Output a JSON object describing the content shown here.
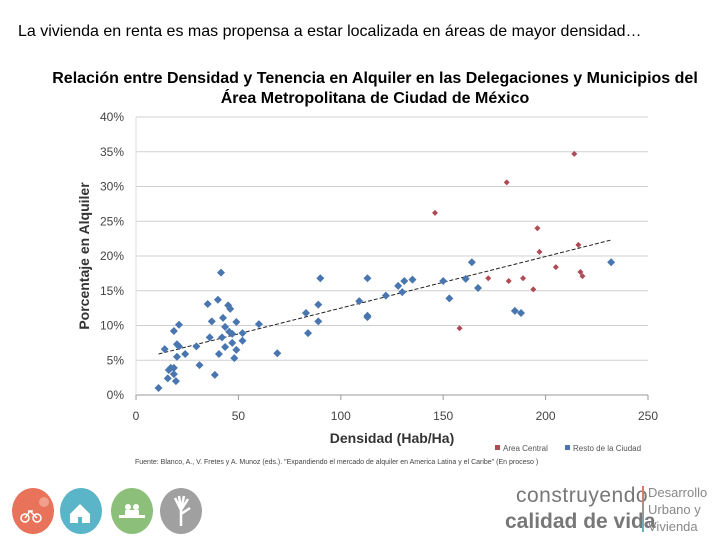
{
  "slide": {
    "heading": "La vivienda en renta es mas propensa a estar localizada en áreas de mayor densidad…",
    "source": "Fuente: Blanco, A., V. Fretes y A. Munoz (eds.). \"Expandiendo el mercado de alquiler en America Latina y el Caribe\" (En proceso )",
    "brand": {
      "line1": "construyendo",
      "line2": "calidad de vida",
      "dept": "Desarrollo Urbano y Vivienda"
    },
    "logos": [
      {
        "icon": "bicycle-icon",
        "color": "#e8735a"
      },
      {
        "icon": "house-icon",
        "color": "#5ab5c8"
      },
      {
        "icon": "community-icon",
        "color": "#8cc07a"
      },
      {
        "icon": "raised-hands-icon",
        "color": "#a0a0a0"
      }
    ]
  },
  "chart_data": {
    "type": "scatter",
    "title": "Relación entre Densidad y Tenencia en Alquiler en las Delegaciones y Municipios del Área Metropolitana de Ciudad de México",
    "xlabel": "Densidad (Hab/Ha)",
    "ylabel": "Porcentaje en Alquiler",
    "xlim": [
      0,
      250
    ],
    "ylim": [
      0,
      40
    ],
    "xticks": [
      "0",
      "50",
      "100",
      "150",
      "200",
      "250"
    ],
    "yticks": [
      "0%",
      "5%",
      "10%",
      "15%",
      "20%",
      "25%",
      "30%",
      "35%",
      "40%"
    ],
    "grid": "horizontal",
    "legend_position": "bottom-right",
    "trendline": {
      "style": "dashed",
      "x": [
        11,
        232
      ],
      "y": [
        5.9,
        22.3
      ]
    },
    "series": [
      {
        "name": "Area Central",
        "color": "#b04a55",
        "points": [
          [
            214,
            34.7
          ],
          [
            181,
            30.6
          ],
          [
            146,
            26.2
          ],
          [
            196,
            24.0
          ],
          [
            216,
            21.6
          ],
          [
            197,
            20.6
          ],
          [
            205,
            18.4
          ],
          [
            217,
            17.7
          ],
          [
            218,
            17.1
          ],
          [
            172,
            16.8
          ],
          [
            182,
            16.4
          ],
          [
            189,
            16.8
          ],
          [
            194,
            15.2
          ],
          [
            158,
            9.6
          ]
        ]
      },
      {
        "name": "Resto de la Ciudad",
        "color": "#4a76b0",
        "points": [
          [
            232,
            19.1
          ],
          [
            164,
            19.1
          ],
          [
            90,
            16.8
          ],
          [
            113,
            16.8
          ],
          [
            135,
            16.6
          ],
          [
            131,
            16.4
          ],
          [
            128,
            15.7
          ],
          [
            130,
            14.8
          ],
          [
            150,
            16.4
          ],
          [
            161,
            16.7
          ],
          [
            167,
            15.4
          ],
          [
            153,
            13.9
          ],
          [
            122,
            14.3
          ],
          [
            109,
            13.5
          ],
          [
            89,
            13.0
          ],
          [
            83,
            11.8
          ],
          [
            89,
            10.6
          ],
          [
            113,
            11.4
          ],
          [
            113,
            11.2
          ],
          [
            84,
            8.9
          ],
          [
            185,
            12.1
          ],
          [
            188,
            11.8
          ],
          [
            41.5,
            17.6
          ],
          [
            40,
            13.7
          ],
          [
            35,
            13.1
          ],
          [
            45,
            12.9
          ],
          [
            46,
            12.4
          ],
          [
            37,
            10.6
          ],
          [
            42.5,
            11.1
          ],
          [
            49,
            10.5
          ],
          [
            60,
            10.2
          ],
          [
            21,
            10.1
          ],
          [
            18.5,
            9.2
          ],
          [
            43.5,
            9.8
          ],
          [
            45.5,
            9.1
          ],
          [
            47,
            8.8
          ],
          [
            52,
            8.9
          ],
          [
            36,
            8.3
          ],
          [
            42,
            8.3
          ],
          [
            52,
            7.8
          ],
          [
            47,
            7.5
          ],
          [
            20,
            7.3
          ],
          [
            21,
            7.0
          ],
          [
            29.5,
            7.0
          ],
          [
            14,
            6.6
          ],
          [
            43.5,
            6.9
          ],
          [
            49,
            6.5
          ],
          [
            24,
            5.9
          ],
          [
            40.5,
            5.9
          ],
          [
            69,
            6.0
          ],
          [
            48,
            5.3
          ],
          [
            20,
            5.5
          ],
          [
            31,
            4.3
          ],
          [
            17,
            3.9
          ],
          [
            18.5,
            3.9
          ],
          [
            16,
            3.6
          ],
          [
            18.5,
            3.0
          ],
          [
            38.5,
            2.9
          ],
          [
            15.5,
            2.4
          ],
          [
            19.5,
            2.0
          ],
          [
            11,
            1.0
          ]
        ]
      }
    ]
  }
}
